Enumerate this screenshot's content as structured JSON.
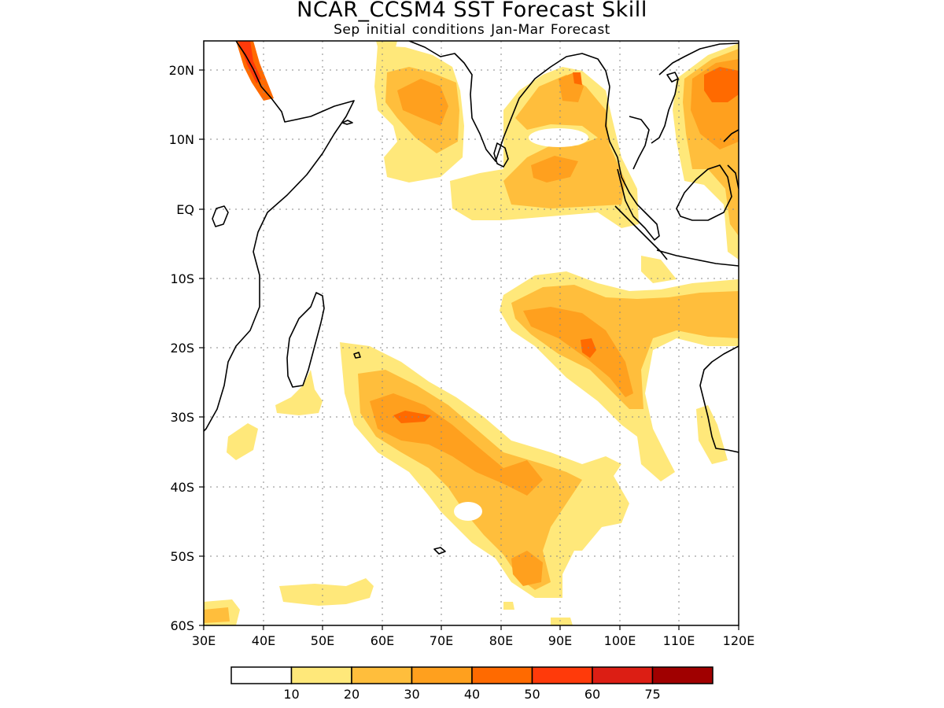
{
  "title": "NCAR_CCSM4  SST  Forecast  Skill",
  "subtitle": "Sep  initial  conditions   Jan-Mar  Forecast",
  "axes": {
    "lat_labels": [
      "20N",
      "10N",
      "EQ",
      "10S",
      "20S",
      "30S",
      "40S",
      "50S",
      "60S"
    ],
    "lon_labels": [
      "30E",
      "40E",
      "50E",
      "60E",
      "70E",
      "80E",
      "90E",
      "100E",
      "110E",
      "120E"
    ]
  },
  "colorbar": {
    "colors": [
      "#ffffff",
      "#ffe87a",
      "#ffbe3c",
      "#ffa01e",
      "#ff6a00",
      "#ff3a0a",
      "#dc1e14",
      "#a00000"
    ],
    "labels": [
      "10",
      "20",
      "30",
      "40",
      "50",
      "60",
      "75"
    ]
  },
  "map_colors": {
    "skill_10_20": "#ffe87a",
    "skill_20_30": "#ffbe3c",
    "skill_30_40": "#ffa01e",
    "skill_40_50": "#ff6a00",
    "skill_50_60": "#ff3a0a",
    "coastline": "#000000",
    "grid": "#888888"
  }
}
